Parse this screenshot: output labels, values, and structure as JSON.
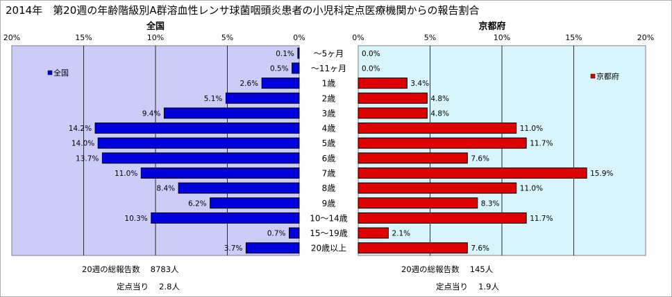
{
  "title": "2014年　第20週の年齢階級別A群溶血性レンサ球菌咽頭炎患者の小児科定点医療機関からの報告割合",
  "chart_data": {
    "type": "bar",
    "orientation": "horizontal",
    "categories": [
      "～5ヶ月",
      "～11ヶ月",
      "1歳",
      "2歳",
      "3歳",
      "4歳",
      "5歳",
      "6歳",
      "7歳",
      "8歳",
      "9歳",
      "10～14歳",
      "15～19歳",
      "20歳以上"
    ],
    "xlim": [
      0,
      20
    ],
    "ticks": [
      "0%",
      "5%",
      "10%",
      "15%",
      "20%"
    ],
    "colors": {
      "national_bar": "#0000dd",
      "kyoto_bar": "#dd0000",
      "national_bg": "#ccccf8",
      "kyoto_bg": "#d8f4fc"
    },
    "series": [
      {
        "name": "全国",
        "panel_title": "全国",
        "legend": "全国",
        "values": [
          0.1,
          0.5,
          2.6,
          5.1,
          9.4,
          14.2,
          14.0,
          13.7,
          11.0,
          8.4,
          6.2,
          10.3,
          0.7,
          3.7
        ],
        "labels": [
          "0.1%",
          "0.5%",
          "2.6%",
          "5.1%",
          "9.4%",
          "14.2%",
          "14.0%",
          "13.7%",
          "11.0%",
          "8.4%",
          "6.2%",
          "10.3%",
          "0.7%",
          "3.7%"
        ]
      },
      {
        "name": "京都府",
        "panel_title": "京都府",
        "legend": "京都府",
        "values": [
          0.0,
          0.0,
          3.4,
          4.8,
          4.8,
          11.0,
          11.7,
          7.6,
          15.9,
          11.0,
          8.3,
          11.7,
          2.1,
          7.6
        ],
        "labels": [
          "0.0%",
          "0.0%",
          "3.4%",
          "4.8%",
          "4.8%",
          "11.0%",
          "11.7%",
          "7.6%",
          "15.9%",
          "11.0%",
          "8.3%",
          "11.7%",
          "2.1%",
          "7.6%"
        ]
      }
    ]
  },
  "footer": {
    "national_total": "20週の総報告数　 8783人",
    "national_per_site": "定点当り　 2.8人",
    "kyoto_total": "20週の総報告数　 145人",
    "kyoto_per_site": "定点当り　 1.9人"
  }
}
